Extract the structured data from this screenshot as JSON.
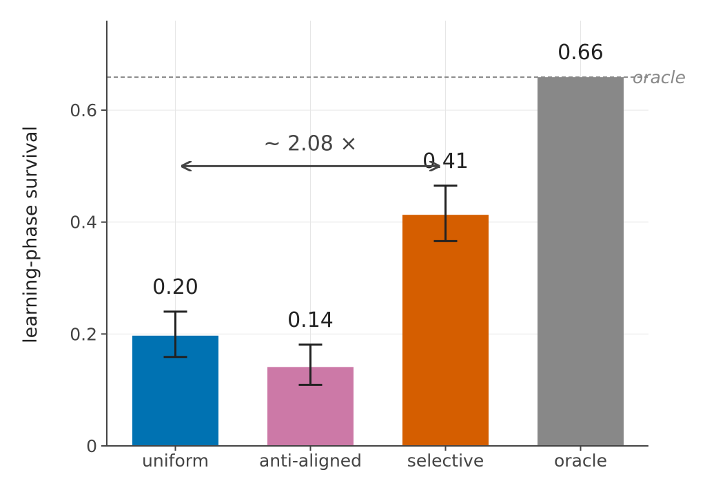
{
  "chart_data": {
    "type": "bar",
    "categories": [
      "uniform",
      "anti-aligned",
      "selective",
      "oracle"
    ],
    "values": [
      0.197,
      0.141,
      0.413,
      0.659
    ],
    "error_low": [
      0.159,
      0.109,
      0.366,
      null
    ],
    "error_high": [
      0.24,
      0.181,
      0.465,
      null
    ],
    "value_labels": [
      "0.20",
      "0.14",
      "0.41",
      "0.66"
    ],
    "colors": [
      "#0072b2",
      "#cc79a7",
      "#d55e00",
      "#888888"
    ],
    "ylabel": "learning-phase survival",
    "xlabel": "",
    "title": "",
    "ylim": [
      0,
      0.76
    ],
    "yticks": [
      0,
      0.2,
      0.4,
      0.6
    ],
    "ytick_labels": [
      "0",
      "0.2",
      "0.4",
      "0.6"
    ],
    "grid": true,
    "reference_line": {
      "value": 0.659,
      "label": "oracle",
      "color": "#888888",
      "style": "dashed"
    },
    "annotation": {
      "text": "~ 2.08 ×",
      "from_category": "uniform",
      "to_category": "selective",
      "y": 0.5
    }
  }
}
